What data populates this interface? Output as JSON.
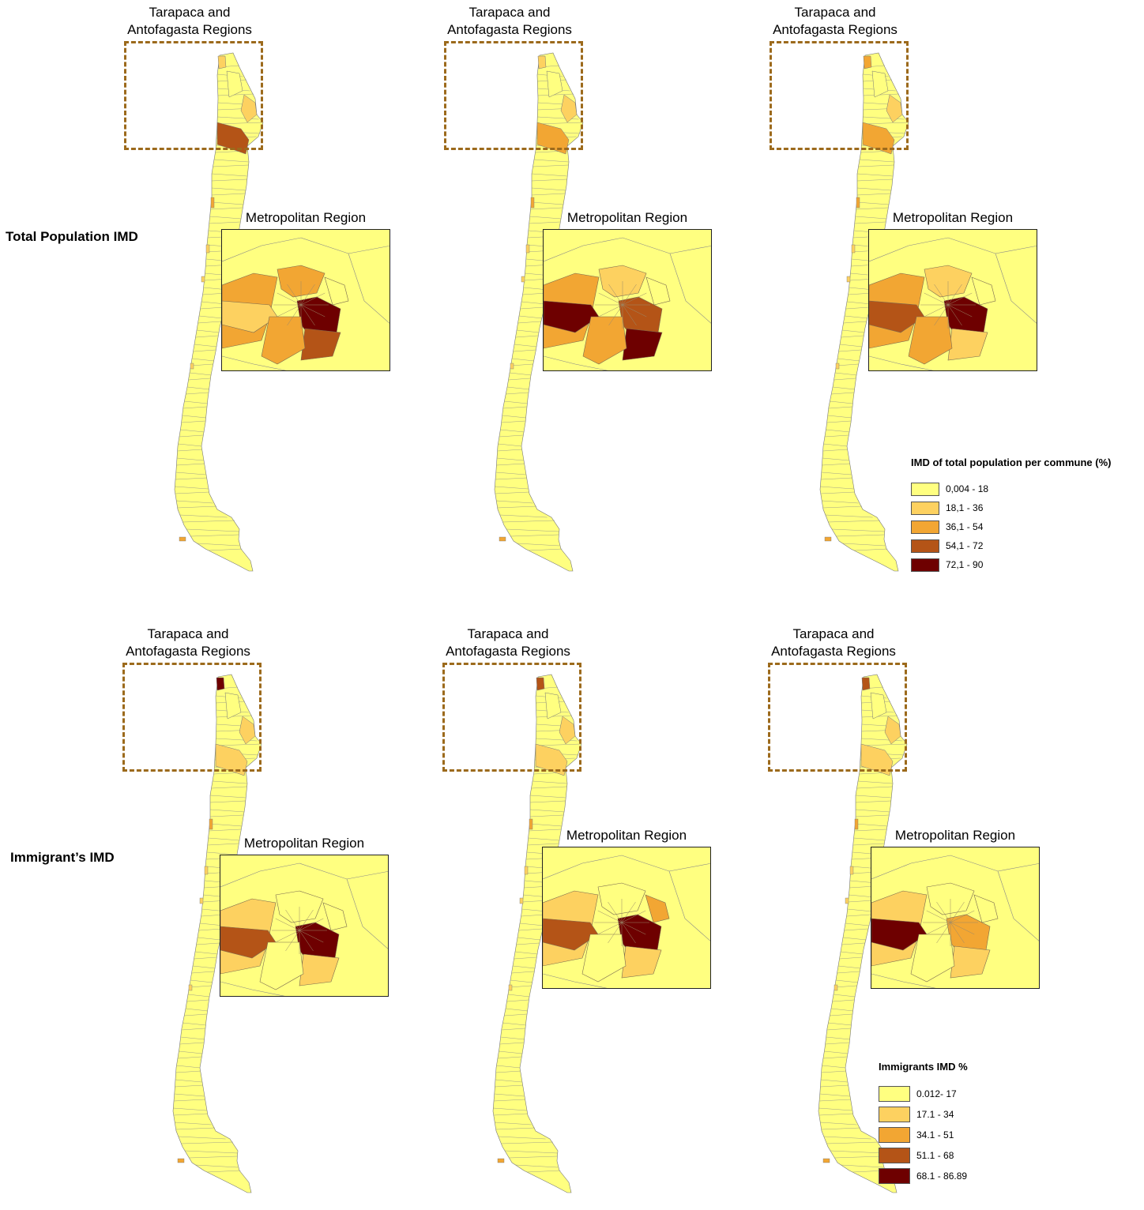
{
  "rows": [
    {
      "label": "Total Population IMD",
      "panels": [
        {
          "north_title_line1": "Tarapaca and",
          "north_title_line2": "Antofagasta Regions",
          "metro_title": "Metropolitan Region",
          "north_classes": [
            1,
            0,
            1,
            3
          ],
          "metro_classes": [
            2,
            2,
            1,
            4,
            3,
            2,
            0
          ]
        },
        {
          "north_title_line1": "Tarapaca and",
          "north_title_line2": "Antofagasta Regions",
          "metro_title": "Metropolitan Region",
          "north_classes": [
            1,
            0,
            1,
            2
          ],
          "metro_classes": [
            2,
            1,
            4,
            3,
            4,
            2,
            0
          ]
        },
        {
          "north_title_line1": "Tarapaca and",
          "north_title_line2": "Antofagasta Regions",
          "metro_title": "Metropolitan Region",
          "north_classes": [
            2,
            0,
            1,
            2
          ],
          "metro_classes": [
            2,
            1,
            3,
            4,
            1,
            2,
            0
          ]
        }
      ],
      "legend": {
        "title": "IMD of total population per commune (%)",
        "items": [
          {
            "label": "0,004 - 18",
            "color": "#ffff80"
          },
          {
            "label": "18,1 - 36",
            "color": "#fdd160"
          },
          {
            "label": "36,1 - 54",
            "color": "#f2a633"
          },
          {
            "label": "54,1 - 72",
            "color": "#b45417"
          },
          {
            "label": "72,1 - 90",
            "color": "#6e0000"
          }
        ]
      }
    },
    {
      "label": "Immigrant’s IMD",
      "panels": [
        {
          "north_title_line1": "Tarapaca and",
          "north_title_line2": "Antofagasta Regions",
          "metro_title": "Metropolitan Region",
          "north_classes": [
            4,
            0,
            1,
            1
          ],
          "metro_classes": [
            1,
            0,
            3,
            4,
            1,
            0,
            0
          ]
        },
        {
          "north_title_line1": "Tarapaca and",
          "north_title_line2": "Antofagasta Regions",
          "metro_title": "Metropolitan Region",
          "north_classes": [
            3,
            0,
            1,
            1
          ],
          "metro_classes": [
            1,
            0,
            3,
            4,
            1,
            0,
            2
          ]
        },
        {
          "north_title_line1": "Tarapaca and",
          "north_title_line2": "Antofagasta Regions",
          "metro_title": "Metropolitan Region",
          "north_classes": [
            3,
            0,
            1,
            1
          ],
          "metro_classes": [
            1,
            0,
            4,
            2,
            1,
            0,
            0
          ]
        }
      ],
      "legend": {
        "title": "Immigrants IMD %",
        "items": [
          {
            "label": "0.012- 17",
            "color": "#ffff80"
          },
          {
            "label": "17.1 - 34",
            "color": "#fdd160"
          },
          {
            "label": "34.1 - 51",
            "color": "#f2a633"
          },
          {
            "label": "51.1 - 68",
            "color": "#b45417"
          },
          {
            "label": "68.1 - 86.89",
            "color": "#6e0000"
          }
        ]
      }
    }
  ]
}
